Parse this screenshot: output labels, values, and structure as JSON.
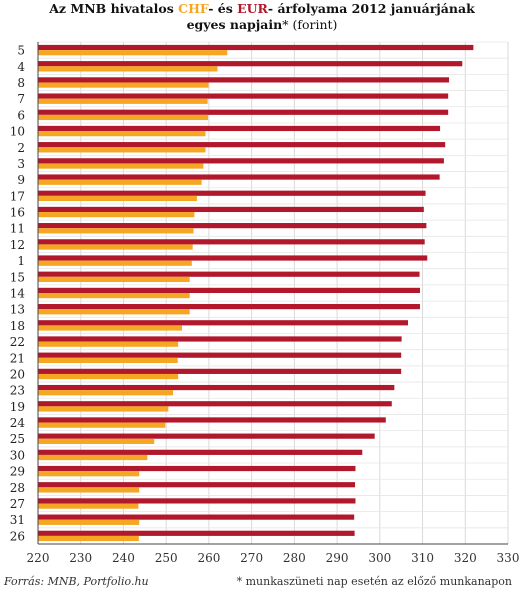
{
  "title": {
    "line1_prefix": "Az MNB hivatalos ",
    "chf": "CHF",
    "mid": "- és ",
    "eur": "EUR",
    "line1_suffix": "- árfolyama 2012 januárjának",
    "line2": "egyes napjain",
    "line2_note": "* (forint)"
  },
  "source": "Forrás: MNB, Portfolio.hu",
  "footnote": "* munkaszüneti nap esetén az előző munkanapon",
  "colors": {
    "eur": "#B2182B",
    "chf": "#F5A623",
    "grid": "#d9d9d9",
    "axis": "#444444"
  },
  "chart_data": {
    "type": "bar",
    "orientation": "horizontal",
    "title": "Az MNB hivatalos CHF- és EUR- árfolyama 2012 januárjának egyes napjain* (forint)",
    "categories": [
      "5",
      "4",
      "8",
      "7",
      "6",
      "10",
      "2",
      "3",
      "9",
      "17",
      "16",
      "11",
      "12",
      "1",
      "15",
      "14",
      "13",
      "18",
      "22",
      "21",
      "20",
      "23",
      "19",
      "24",
      "25",
      "30",
      "29",
      "28",
      "27",
      "31",
      "26"
    ],
    "series": [
      {
        "name": "EUR",
        "values": [
          321.9,
          319.3,
          316.2,
          316.0,
          316.0,
          314.1,
          315.3,
          315.0,
          314.0,
          310.7,
          310.3,
          310.9,
          310.5,
          311.1,
          309.3,
          309.4,
          309.4,
          306.6,
          305.1,
          305.0,
          305.0,
          303.4,
          302.8,
          301.4,
          298.8,
          295.9,
          294.3,
          294.2,
          294.3,
          294.0,
          294.1
        ]
      },
      {
        "name": "CHF",
        "values": [
          264.3,
          262.0,
          259.9,
          259.7,
          259.8,
          259.2,
          259.2,
          258.7,
          258.3,
          257.2,
          256.6,
          256.4,
          256.2,
          256.0,
          255.5,
          255.5,
          255.5,
          253.7,
          252.8,
          252.7,
          252.8,
          251.6,
          250.5,
          249.8,
          247.2,
          245.6,
          243.7,
          243.7,
          243.5,
          243.7,
          243.6
        ]
      }
    ],
    "xlim": [
      220,
      330
    ],
    "xticks": [
      220,
      230,
      240,
      250,
      260,
      270,
      280,
      290,
      300,
      310,
      320,
      330
    ],
    "grid": true
  }
}
